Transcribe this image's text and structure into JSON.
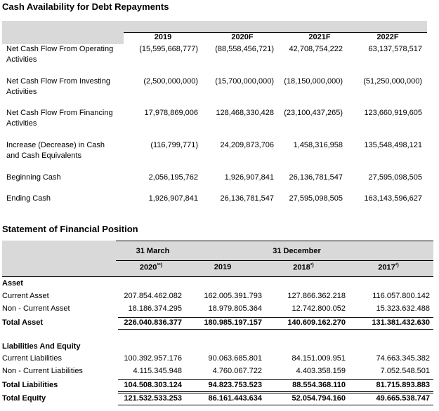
{
  "cash_table": {
    "title": "Cash Availability for Debt Repayments",
    "columns": [
      "2019",
      "2020F",
      "2021F",
      "2022F"
    ],
    "rows": [
      {
        "label": "Net Cash Flow From Operating Activities",
        "values": [
          "(15,595,668,777)",
          "(88,558,456,721)",
          "42,708,754,222",
          "63,137,578,517"
        ]
      },
      {
        "label": "Net Cash Flow From Investing Activities",
        "values": [
          "(2,500,000,000)",
          "(15,700,000,000)",
          "(18,150,000,000)",
          "(51,250,000,000)"
        ]
      },
      {
        "label": "Net Cash Flow From Financing Activities",
        "values": [
          "17,978,869,006",
          "128,468,330,428",
          "(23,100,437,265)",
          "123,660,919,605"
        ]
      },
      {
        "label": "Increase (Decrease) in Cash and Cash Equivalents",
        "values": [
          "(116,799,771)",
          "24,209,873,706",
          "1,458,316,958",
          "135,548,498,121"
        ]
      },
      {
        "label": "Beginning Cash",
        "values": [
          "2,056,195,762",
          "1,926,907,841",
          "26,136,781,547",
          "27,595,098,505"
        ]
      },
      {
        "label": "Ending Cash",
        "values": [
          "1,926,907,841",
          "26,136,781,547",
          "27,595,098,505",
          "163,143,596,627"
        ]
      }
    ]
  },
  "position_table": {
    "title": "Statement of Financial Position",
    "groups": [
      "31 March",
      "31 December"
    ],
    "columns": [
      {
        "year": "2020",
        "note": "**)"
      },
      {
        "year": "2019",
        "note": ""
      },
      {
        "year": "2018",
        "note": "*)"
      },
      {
        "year": "2017",
        "note": "*)"
      }
    ],
    "sections": [
      {
        "heading": "Asset",
        "rows": [
          {
            "label": "Current Asset",
            "values": [
              "207.854.462.082",
              "162.005.391.793",
              "127.866.362.218",
              "116.057.800.142"
            ],
            "total": false
          },
          {
            "label": "Non - Current Asset",
            "values": [
              "18.186.374.295",
              "18.979.805.364",
              "12.742.800.052",
              "15.323.632.488"
            ],
            "total": false
          },
          {
            "label": "Total Asset",
            "values": [
              "226.040.836.377",
              "180.985.197.157",
              "140.609.162.270",
              "131.381.432.630"
            ],
            "total": true
          }
        ]
      },
      {
        "heading": "Liabilities And Equity",
        "rows": [
          {
            "label": "Current Liabilities",
            "values": [
              "100.392.957.176",
              "90.063.685.801",
              "84.151.009.951",
              "74.663.345.382"
            ],
            "total": false
          },
          {
            "label": "Non - Current Liabilities",
            "values": [
              "4.115.345.948",
              "4.760.067.722",
              "4.403.358.159",
              "7.052.548.501"
            ],
            "total": false
          },
          {
            "label": "Total Liabilities",
            "values": [
              "104.508.303.124",
              "94.823.753.523",
              "88.554.368.110",
              "81.715.893.883"
            ],
            "total": true
          },
          {
            "label": "Total Equity",
            "values": [
              "121.532.533.253",
              "86.161.443.634",
              "52.054.794.160",
              "49.665.538.747"
            ],
            "total": true
          }
        ]
      }
    ]
  }
}
